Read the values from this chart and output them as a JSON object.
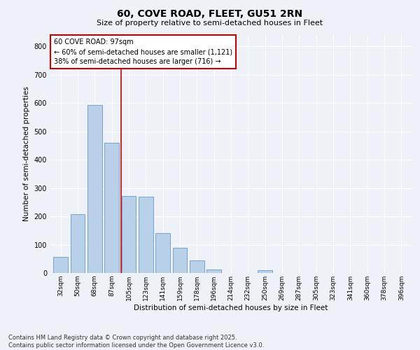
{
  "title1": "60, COVE ROAD, FLEET, GU51 2RN",
  "title2": "Size of property relative to semi-detached houses in Fleet",
  "xlabel": "Distribution of semi-detached houses by size in Fleet",
  "ylabel": "Number of semi-detached properties",
  "categories": [
    "32sqm",
    "50sqm",
    "68sqm",
    "87sqm",
    "105sqm",
    "123sqm",
    "141sqm",
    "159sqm",
    "178sqm",
    "196sqm",
    "214sqm",
    "232sqm",
    "250sqm",
    "269sqm",
    "287sqm",
    "305sqm",
    "323sqm",
    "341sqm",
    "360sqm",
    "378sqm",
    "396sqm"
  ],
  "values": [
    57,
    207,
    593,
    460,
    272,
    270,
    140,
    88,
    44,
    12,
    0,
    0,
    10,
    0,
    0,
    0,
    0,
    0,
    0,
    0,
    0
  ],
  "bar_color": "#b8d0e8",
  "bar_edge_color": "#6699cc",
  "marker_line_color": "#cc0000",
  "annotation_line1": "60 COVE ROAD: 97sqm",
  "annotation_line2": "← 60% of semi-detached houses are smaller (1,121)",
  "annotation_line3": "38% of semi-detached houses are larger (716) →",
  "annotation_box_color": "#cc0000",
  "ylim": [
    0,
    840
  ],
  "yticks": [
    0,
    100,
    200,
    300,
    400,
    500,
    600,
    700,
    800
  ],
  "footer": "Contains HM Land Registry data © Crown copyright and database right 2025.\nContains public sector information licensed under the Open Government Licence v3.0.",
  "bg_color": "#eef2f8",
  "grid_color": "#ffffff"
}
